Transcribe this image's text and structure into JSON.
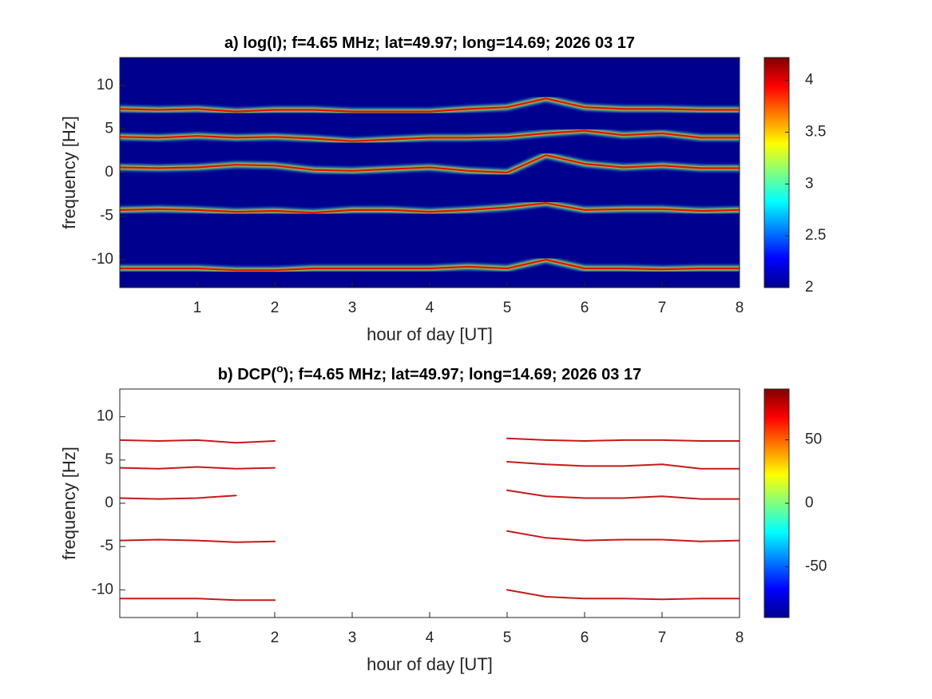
{
  "chart_data": [
    {
      "type": "spectrogram",
      "title": [
        "a) log(I); f=4.65 MHz;  lat=49.97; long=14.69; 2026 03 17"
      ],
      "x_label": "hour of day [UT]",
      "y_label": "frequency [Hz]",
      "xlim": [
        0,
        8
      ],
      "xticks": [
        1,
        2,
        3,
        4,
        5,
        6,
        7,
        8
      ],
      "ylim": [
        -13.2,
        13.2
      ],
      "yticks": [
        -10,
        -5,
        0,
        5,
        10
      ],
      "clim": [
        2,
        4.22
      ],
      "cticks": [
        2,
        2.5,
        3,
        3.5,
        4
      ],
      "background": "#00008f",
      "x": [
        0,
        0.5,
        1,
        1.5,
        2,
        2.5,
        3,
        3.5,
        4,
        4.5,
        5,
        5.5,
        6,
        6.5,
        7,
        7.5,
        8
      ],
      "series": [
        {
          "color": "#e01000",
          "values": [
            7.3,
            7.2,
            7.3,
            7.0,
            7.2,
            7.2,
            7.0,
            7.0,
            7.0,
            7.3,
            7.5,
            8.5,
            7.5,
            7.3,
            7.3,
            7.2,
            7.2
          ]
        },
        {
          "color": "#e01000",
          "values": [
            4.1,
            4.0,
            4.2,
            4.0,
            4.1,
            3.9,
            3.6,
            3.8,
            4.0,
            4.0,
            4.1,
            4.5,
            4.8,
            4.3,
            4.5,
            4.0,
            4.0
          ]
        },
        {
          "color": "#e01000",
          "values": [
            0.6,
            0.5,
            0.6,
            0.9,
            0.8,
            0.3,
            0.2,
            0.4,
            0.6,
            0.2,
            0.0,
            2.0,
            1.0,
            0.6,
            0.8,
            0.5,
            0.5
          ]
        },
        {
          "color": "#e01000",
          "values": [
            -4.3,
            -4.2,
            -4.3,
            -4.5,
            -4.4,
            -4.6,
            -4.3,
            -4.3,
            -4.5,
            -4.3,
            -4.0,
            -3.5,
            -4.3,
            -4.2,
            -4.2,
            -4.4,
            -4.3
          ]
        },
        {
          "color": "#e01000",
          "values": [
            -11.0,
            -11.0,
            -11.0,
            -11.2,
            -11.2,
            -11.0,
            -11.0,
            -11.0,
            -11.0,
            -10.8,
            -11.0,
            -10.0,
            -11.0,
            -11.0,
            -11.1,
            -11.0,
            -11.0
          ]
        }
      ]
    },
    {
      "type": "spectrogram",
      "title": [
        "b) DCP(",
        "o",
        "); f=4.65 MHz;  lat=49.97; long=14.69; 2026 03 17"
      ],
      "x_label": "hour of day [UT]",
      "y_label": "frequency [Hz]",
      "xlim": [
        0,
        8
      ],
      "xticks": [
        1,
        2,
        3,
        4,
        5,
        6,
        7,
        8
      ],
      "ylim": [
        -13.2,
        13.2
      ],
      "yticks": [
        -10,
        -5,
        0,
        5,
        10
      ],
      "clim": [
        -90,
        90
      ],
      "cticks": [
        -50,
        0,
        50
      ],
      "background": "#ffffff",
      "x": [
        0,
        0.5,
        1,
        1.5,
        2,
        2.5,
        3,
        3.5,
        4,
        4.5,
        5,
        5.5,
        6,
        6.5,
        7,
        7.5,
        8
      ],
      "series": [
        {
          "color": "#c00000",
          "values": [
            7.3,
            7.2,
            7.3,
            7.0,
            7.2,
            null,
            null,
            null,
            null,
            null,
            7.5,
            7.3,
            7.2,
            7.3,
            7.3,
            7.2,
            7.2
          ]
        },
        {
          "color": "#c00000",
          "values": [
            4.1,
            4.0,
            4.2,
            4.0,
            4.1,
            null,
            null,
            null,
            null,
            null,
            4.8,
            4.5,
            4.3,
            4.3,
            4.5,
            4.0,
            4.0
          ]
        },
        {
          "color": "#c00000",
          "values": [
            0.6,
            0.5,
            0.6,
            0.9,
            null,
            null,
            null,
            null,
            null,
            null,
            1.5,
            0.8,
            0.6,
            0.6,
            0.8,
            0.5,
            0.5
          ]
        },
        {
          "color": "#c00000",
          "values": [
            -4.3,
            -4.2,
            -4.3,
            -4.5,
            -4.4,
            null,
            null,
            null,
            null,
            null,
            -3.2,
            -4.0,
            -4.3,
            -4.2,
            -4.2,
            -4.4,
            -4.3
          ]
        },
        {
          "color": "#c00000",
          "values": [
            -11.0,
            -11.0,
            -11.0,
            -11.2,
            -11.2,
            null,
            null,
            null,
            null,
            null,
            -10.0,
            -10.8,
            -11.0,
            -11.0,
            -11.1,
            -11.0,
            -11.0
          ]
        }
      ]
    }
  ]
}
